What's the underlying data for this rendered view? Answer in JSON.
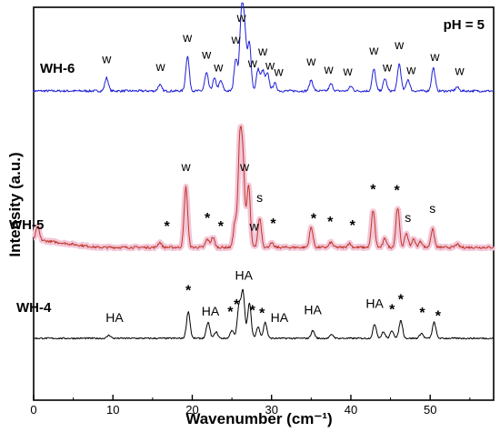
{
  "chart_data": {
    "type": "line",
    "annotation_top_right": "pH = 5",
    "xlabel": "Wavenumber (cm⁻¹)",
    "ylabel": "Intensity (a.u.)",
    "xlim": [
      0,
      58
    ],
    "xticks": [
      0,
      10,
      20,
      30,
      40,
      50
    ],
    "grid": false,
    "series": [
      {
        "name": "WH-6",
        "color": "#1f1fd6",
        "baseline": 0.26,
        "amplitude_scale": 0.22,
        "noise": 0.015,
        "peaks": [
          {
            "x": 9.2,
            "h": 0.17
          },
          {
            "x": 15.9,
            "h": 0.08
          },
          {
            "x": 19.4,
            "h": 0.45
          },
          {
            "x": 21.8,
            "h": 0.23
          },
          {
            "x": 22.8,
            "h": 0.16
          },
          {
            "x": 23.6,
            "h": 0.13
          },
          {
            "x": 25.5,
            "h": 0.42
          },
          {
            "x": 26.2,
            "h": 0.95
          },
          {
            "x": 26.6,
            "h": 0.75
          },
          {
            "x": 27.2,
            "h": 0.62
          },
          {
            "x": 28.3,
            "h": 0.28
          },
          {
            "x": 28.9,
            "h": 0.26
          },
          {
            "x": 29.5,
            "h": 0.22
          },
          {
            "x": 30.4,
            "h": 0.1
          },
          {
            "x": 35.0,
            "h": 0.14
          },
          {
            "x": 37.5,
            "h": 0.09
          },
          {
            "x": 40.0,
            "h": 0.06
          },
          {
            "x": 42.9,
            "h": 0.28
          },
          {
            "x": 44.3,
            "h": 0.16
          },
          {
            "x": 46.1,
            "h": 0.35
          },
          {
            "x": 47.2,
            "h": 0.15
          },
          {
            "x": 50.4,
            "h": 0.3
          },
          {
            "x": 53.4,
            "h": 0.05
          }
        ],
        "annotations": [
          {
            "x": 9.2,
            "text": "w"
          },
          {
            "x": 16.0,
            "text": "w"
          },
          {
            "x": 19.4,
            "text": "w"
          },
          {
            "x": 21.8,
            "text": "w"
          },
          {
            "x": 23.3,
            "text": "w"
          },
          {
            "x": 25.5,
            "text": "w"
          },
          {
            "x": 26.2,
            "text": "w"
          },
          {
            "x": 27.6,
            "text": "w"
          },
          {
            "x": 28.9,
            "text": "w"
          },
          {
            "x": 29.8,
            "text": "w"
          },
          {
            "x": 30.9,
            "text": "w"
          },
          {
            "x": 35.0,
            "text": "w"
          },
          {
            "x": 37.2,
            "text": "w"
          },
          {
            "x": 39.6,
            "text": "w"
          },
          {
            "x": 42.9,
            "text": "w"
          },
          {
            "x": 44.6,
            "text": "w"
          },
          {
            "x": 46.1,
            "text": "w"
          },
          {
            "x": 47.6,
            "text": "w"
          },
          {
            "x": 50.6,
            "text": "w"
          },
          {
            "x": 53.7,
            "text": "w"
          }
        ]
      },
      {
        "name": "WH-5",
        "color": "#c0392b",
        "baseline": 0.0,
        "amplitude_scale": 0.35,
        "noise": 0.012,
        "peaks": [
          {
            "x": 0.5,
            "h": 0.13
          },
          {
            "x": 15.9,
            "h": 0.05
          },
          {
            "x": 19.2,
            "h": 0.6
          },
          {
            "x": 21.9,
            "h": 0.08
          },
          {
            "x": 22.6,
            "h": 0.1
          },
          {
            "x": 25.4,
            "h": 0.25
          },
          {
            "x": 26.0,
            "h": 1.0
          },
          {
            "x": 26.4,
            "h": 0.8
          },
          {
            "x": 27.1,
            "h": 0.62
          },
          {
            "x": 28.5,
            "h": 0.29
          },
          {
            "x": 30.0,
            "h": 0.04
          },
          {
            "x": 35.0,
            "h": 0.2
          },
          {
            "x": 37.5,
            "h": 0.05
          },
          {
            "x": 39.8,
            "h": 0.04
          },
          {
            "x": 42.8,
            "h": 0.37
          },
          {
            "x": 44.3,
            "h": 0.09
          },
          {
            "x": 45.9,
            "h": 0.4
          },
          {
            "x": 47.0,
            "h": 0.14
          },
          {
            "x": 47.9,
            "h": 0.08
          },
          {
            "x": 48.8,
            "h": 0.06
          },
          {
            "x": 50.3,
            "h": 0.18
          },
          {
            "x": 53.4,
            "h": 0.03
          }
        ],
        "annotations": [
          {
            "x": 16.8,
            "text": "*"
          },
          {
            "x": 19.2,
            "text": "w"
          },
          {
            "x": 21.9,
            "text": "*"
          },
          {
            "x": 23.6,
            "text": "*"
          },
          {
            "x": 26.6,
            "text": "w"
          },
          {
            "x": 27.8,
            "text": "w"
          },
          {
            "x": 28.5,
            "text": "s"
          },
          {
            "x": 30.2,
            "text": "*"
          },
          {
            "x": 35.3,
            "text": "*"
          },
          {
            "x": 37.4,
            "text": "*"
          },
          {
            "x": 40.2,
            "text": "*"
          },
          {
            "x": 42.8,
            "text": "*"
          },
          {
            "x": 45.8,
            "text": "*"
          },
          {
            "x": 47.2,
            "text": "s"
          },
          {
            "x": 50.3,
            "text": "s"
          }
        ]
      },
      {
        "name": "WH-4",
        "color": "#000000",
        "baseline": 0.0,
        "amplitude_scale": 0.22,
        "noise": 0.012,
        "peaks": [
          {
            "x": 9.5,
            "h": 0.05
          },
          {
            "x": 19.5,
            "h": 0.42
          },
          {
            "x": 22.0,
            "h": 0.25
          },
          {
            "x": 23.0,
            "h": 0.1
          },
          {
            "x": 25.0,
            "h": 0.13
          },
          {
            "x": 25.9,
            "h": 0.5
          },
          {
            "x": 26.4,
            "h": 0.72
          },
          {
            "x": 27.2,
            "h": 0.55
          },
          {
            "x": 28.3,
            "h": 0.18
          },
          {
            "x": 29.2,
            "h": 0.25
          },
          {
            "x": 35.2,
            "h": 0.12
          },
          {
            "x": 37.6,
            "h": 0.06
          },
          {
            "x": 43.0,
            "h": 0.22
          },
          {
            "x": 44.1,
            "h": 0.1
          },
          {
            "x": 45.2,
            "h": 0.12
          },
          {
            "x": 46.3,
            "h": 0.28
          },
          {
            "x": 48.9,
            "h": 0.08
          },
          {
            "x": 50.5,
            "h": 0.25
          }
        ],
        "annotations": [
          {
            "x": 10.2,
            "text": "HA"
          },
          {
            "x": 19.5,
            "text": "*"
          },
          {
            "x": 22.3,
            "text": "HA"
          },
          {
            "x": 24.8,
            "text": "*"
          },
          {
            "x": 25.6,
            "text": "*"
          },
          {
            "x": 26.5,
            "text": "HA"
          },
          {
            "x": 27.6,
            "text": "*"
          },
          {
            "x": 28.8,
            "text": "*"
          },
          {
            "x": 31.0,
            "text": "HA"
          },
          {
            "x": 35.2,
            "text": "HA"
          },
          {
            "x": 43.0,
            "text": "HA"
          },
          {
            "x": 45.2,
            "text": "*"
          },
          {
            "x": 46.3,
            "text": "*"
          },
          {
            "x": 49.0,
            "text": "*"
          },
          {
            "x": 51.0,
            "text": "*"
          }
        ]
      }
    ]
  }
}
